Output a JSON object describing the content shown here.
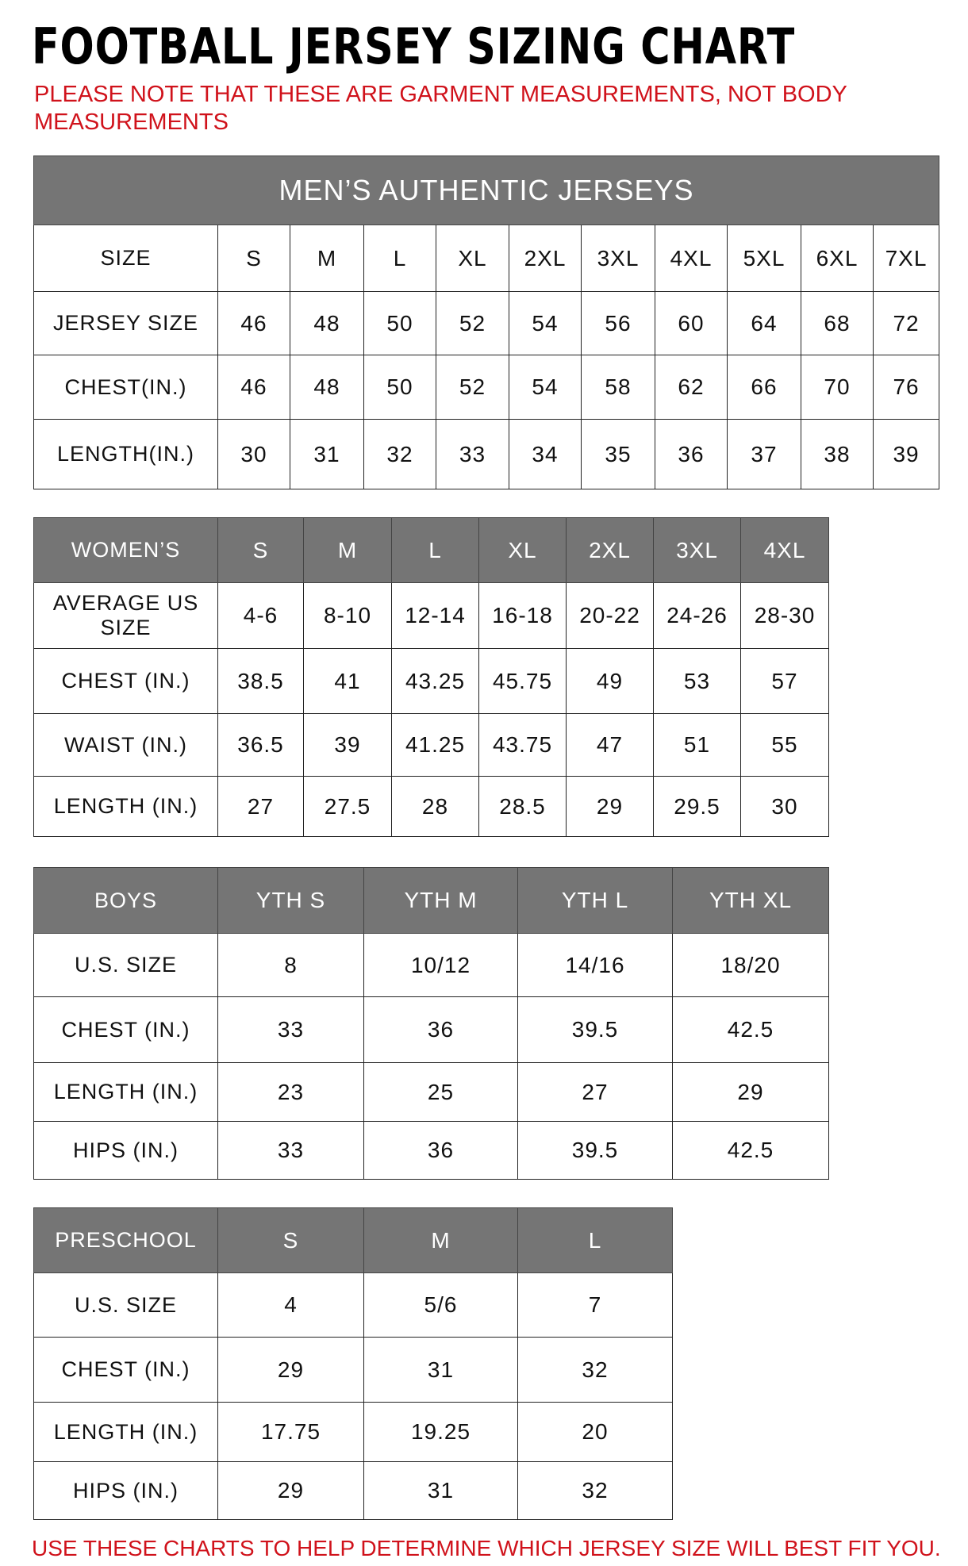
{
  "title": "FOOTBALL JERSEY SIZING CHART",
  "note": "PLEASE NOTE THAT THESE ARE GARMENT MEASUREMENTS, NOT BODY MEASUREMENTS",
  "footer": "USE THESE CHARTS TO HELP DETERMINE WHICH JERSEY SIZE WILL BEST FIT YOU.",
  "colors": {
    "header_bg": "#757575",
    "note_red": "#d0121b"
  },
  "tables": [
    {
      "id": "mens",
      "caption": "MEN’S AUTHENTIC JERSEYS",
      "header_gray": false,
      "rows": [
        [
          "SIZE",
          "S",
          "M",
          "L",
          "XL",
          "2XL",
          "3XL",
          "4XL",
          "5XL",
          "6XL",
          "7XL"
        ],
        [
          "JERSEY SIZE",
          "46",
          "48",
          "50",
          "52",
          "54",
          "56",
          "60",
          "64",
          "68",
          "72"
        ],
        [
          "CHEST(IN.)",
          "46",
          "48",
          "50",
          "52",
          "54",
          "58",
          "62",
          "66",
          "70",
          "76"
        ],
        [
          "LENGTH(IN.)",
          "30",
          "31",
          "32",
          "33",
          "34",
          "35",
          "36",
          "37",
          "38",
          "39"
        ]
      ]
    },
    {
      "id": "womens",
      "header_gray": true,
      "rows": [
        [
          "WOMEN’S",
          "S",
          "M",
          "L",
          "XL",
          "2XL",
          "3XL",
          "4XL"
        ],
        [
          "AVERAGE US SIZE",
          "4-6",
          "8-10",
          "12-14",
          "16-18",
          "20-22",
          "24-26",
          "28-30"
        ],
        [
          "CHEST (IN.)",
          "38.5",
          "41",
          "43.25",
          "45.75",
          "49",
          "53",
          "57"
        ],
        [
          "WAIST (IN.)",
          "36.5",
          "39",
          "41.25",
          "43.75",
          "47",
          "51",
          "55"
        ],
        [
          "LENGTH (IN.)",
          "27",
          "27.5",
          "28",
          "28.5",
          "29",
          "29.5",
          "30"
        ]
      ]
    },
    {
      "id": "boys",
      "header_gray": true,
      "rows": [
        [
          "BOYS",
          "YTH S",
          "YTH M",
          "YTH L",
          "YTH XL"
        ],
        [
          "U.S. SIZE",
          "8",
          "10/12",
          "14/16",
          "18/20"
        ],
        [
          "CHEST (IN.)",
          "33",
          "36",
          "39.5",
          "42.5"
        ],
        [
          "LENGTH (IN.)",
          "23",
          "25",
          "27",
          "29"
        ],
        [
          "HIPS (IN.)",
          "33",
          "36",
          "39.5",
          "42.5"
        ]
      ]
    },
    {
      "id": "preschool",
      "header_gray": true,
      "rows": [
        [
          "PRESCHOOL",
          "S",
          "M",
          "L"
        ],
        [
          "U.S. SIZE",
          "4",
          "5/6",
          "7"
        ],
        [
          "CHEST (IN.)",
          "29",
          "31",
          "32"
        ],
        [
          "LENGTH (IN.)",
          "17.75",
          "19.25",
          "20"
        ],
        [
          "HIPS (IN.)",
          "29",
          "31",
          "32"
        ]
      ]
    }
  ]
}
